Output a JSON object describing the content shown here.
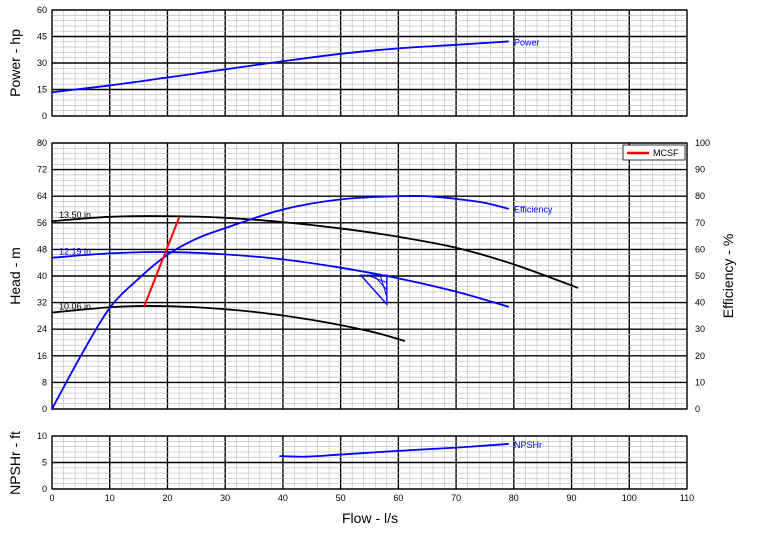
{
  "chart_data": {
    "type": "line",
    "xlabel": "Flow - l/s",
    "xlim": [
      0,
      110
    ],
    "x_ticks": [
      "0",
      "10",
      "20",
      "30",
      "40",
      "50",
      "60",
      "70",
      "80",
      "90",
      "100",
      "110"
    ],
    "panels": [
      {
        "id": "power",
        "ylabel": "Power - hp",
        "ylim": [
          0,
          60
        ],
        "y_ticks": [
          "0",
          "15",
          "30",
          "45",
          "60"
        ],
        "series": [
          {
            "name": "Power",
            "color": "#0000ff",
            "x": [
              0,
              10,
              20,
              30,
              40,
              50,
              60,
              70,
              79
            ],
            "y": [
              13.5,
              17.3,
              21.8,
              26.4,
              31,
              35.2,
              38.3,
              40.3,
              42.2
            ]
          }
        ]
      },
      {
        "id": "head",
        "ylabel": "Head - m",
        "ylim": [
          0,
          80
        ],
        "y_ticks": [
          "0",
          "8",
          "16",
          "24",
          "32",
          "40",
          "48",
          "56",
          "64",
          "72",
          "80"
        ],
        "y2label": "Efficiency - %",
        "y2lim": [
          0,
          100
        ],
        "y2_ticks": [
          "0",
          "10",
          "20",
          "30",
          "40",
          "50",
          "60",
          "70",
          "80",
          "90",
          "100"
        ],
        "legend": {
          "position": "top-right",
          "items": [
            {
              "label": "MCSF",
              "color": "#ff0000"
            }
          ]
        },
        "series": [
          {
            "name": "13.50 in",
            "color": "#000000",
            "x": [
              0,
              10,
              20,
              30,
              40,
              50,
              60,
              70,
              80,
              91
            ],
            "y": [
              56.5,
              57.8,
              58,
              57.5,
              56.2,
              54.3,
              51.8,
              48.5,
              43.5,
              36.5
            ]
          },
          {
            "name": "12.19 in",
            "color": "#0000ff",
            "x": [
              0,
              10,
              20,
              30,
              40,
              50,
              60,
              70,
              79
            ],
            "y": [
              45.5,
              46.8,
              47.2,
              46.5,
              45,
              42.5,
              39.3,
              35.3,
              30.8
            ]
          },
          {
            "name": "10.06 in",
            "color": "#000000",
            "x": [
              0,
              10,
              17,
              25,
              35,
              45,
              55,
              61
            ],
            "y": [
              29,
              30.6,
              31,
              30.6,
              29.2,
              26.8,
              23.4,
              20.5
            ]
          },
          {
            "name": "Efficiency",
            "axis": "right",
            "color": "#0000ff",
            "x": [
              0,
              5,
              10,
              15,
              20,
              25,
              30,
              40,
              50,
              60,
              65,
              70,
              75,
              79
            ],
            "y": [
              0,
              20,
              38,
              49,
              58,
              64,
              68,
              75,
              78.8,
              80,
              80,
              79,
              77.5,
              75.3
            ]
          },
          {
            "name": "MCSF",
            "color": "#ff0000",
            "x": [
              16,
              22
            ],
            "y": [
              31,
              57.5
            ]
          }
        ]
      },
      {
        "id": "npshr",
        "ylabel": "NPSHr - ft",
        "ylim": [
          0,
          10
        ],
        "y_ticks": [
          "0",
          "5",
          "10"
        ],
        "series": [
          {
            "name": "NPSHr",
            "color": "#0000ff",
            "x": [
              39.5,
              44,
              50,
              60,
              70,
              79
            ],
            "y": [
              6.2,
              6.1,
              6.5,
              7.2,
              7.8,
              8.5
            ]
          }
        ]
      }
    ]
  }
}
